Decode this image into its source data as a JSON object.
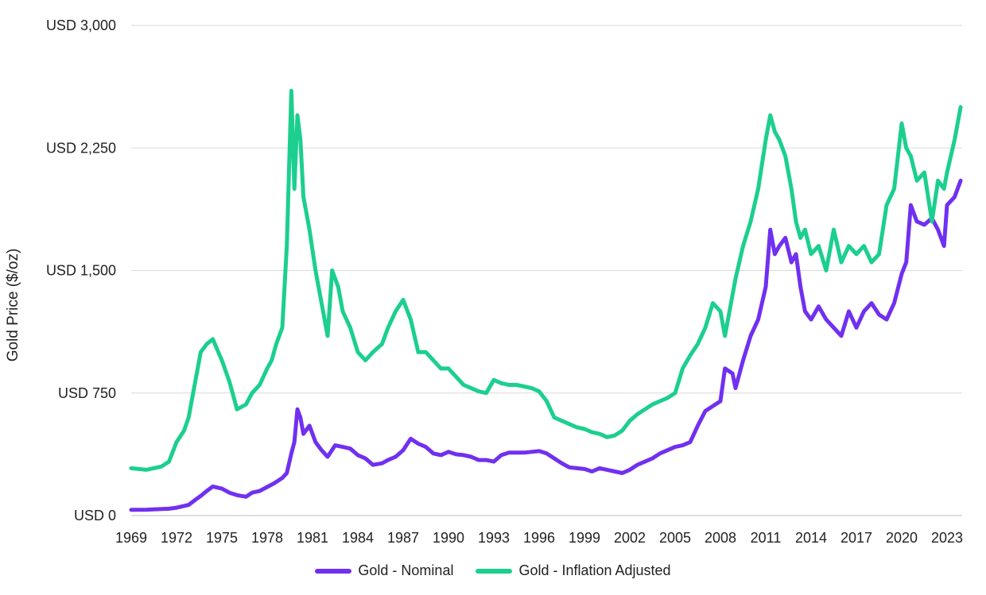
{
  "chart_data": {
    "type": "line",
    "title": "",
    "xlabel": "",
    "ylabel": "Gold Price ($/oz)",
    "ylim": [
      0,
      3000
    ],
    "xlim": [
      1969,
      2024
    ],
    "y_ticks": [
      {
        "value": 0,
        "label": "USD 0"
      },
      {
        "value": 750,
        "label": "USD 750"
      },
      {
        "value": 1500,
        "label": "USD 1,500"
      },
      {
        "value": 2250,
        "label": "USD 2,250"
      },
      {
        "value": 3000,
        "label": "USD 3,000"
      }
    ],
    "x_ticks": [
      1969,
      1972,
      1975,
      1978,
      1981,
      1984,
      1987,
      1990,
      1993,
      1996,
      1999,
      2002,
      2005,
      2008,
      2011,
      2014,
      2017,
      2020,
      2023
    ],
    "grid": "horizontal",
    "legend_position": "bottom",
    "series": [
      {
        "name": "Gold - Nominal",
        "color": "#7030f0",
        "x": [
          1969.0,
          1970.0,
          1971.0,
          1971.5,
          1972.0,
          1972.8,
          1973.3,
          1973.6,
          1974.0,
          1974.4,
          1975.0,
          1975.5,
          1976.0,
          1976.6,
          1977.0,
          1977.5,
          1978.0,
          1978.5,
          1979.0,
          1979.3,
          1979.6,
          1979.8,
          1980.0,
          1980.2,
          1980.4,
          1980.8,
          1981.2,
          1981.6,
          1982.0,
          1982.5,
          1983.0,
          1983.5,
          1984.0,
          1984.5,
          1985.0,
          1985.6,
          1986.0,
          1986.5,
          1987.0,
          1987.5,
          1988.0,
          1988.5,
          1989.0,
          1989.5,
          1990.0,
          1990.5,
          1991.0,
          1991.5,
          1992.0,
          1992.5,
          1993.0,
          1993.5,
          1994.0,
          1994.5,
          1995.0,
          1995.5,
          1996.0,
          1996.5,
          1997.0,
          1997.5,
          1998.0,
          1998.5,
          1999.0,
          1999.5,
          2000.0,
          2000.5,
          2001.0,
          2001.5,
          2002.0,
          2002.5,
          2003.0,
          2003.5,
          2004.0,
          2004.5,
          2005.0,
          2005.5,
          2006.0,
          2006.5,
          2007.0,
          2007.5,
          2008.0,
          2008.3,
          2008.8,
          2009.0,
          2009.5,
          2010.0,
          2010.5,
          2011.0,
          2011.3,
          2011.6,
          2011.9,
          2012.3,
          2012.7,
          2013.0,
          2013.3,
          2013.6,
          2014.0,
          2014.5,
          2015.0,
          2015.5,
          2016.0,
          2016.5,
          2017.0,
          2017.5,
          2018.0,
          2018.5,
          2019.0,
          2019.5,
          2020.0,
          2020.3,
          2020.6,
          2021.0,
          2021.5,
          2022.0,
          2022.4,
          2022.8,
          2023.0,
          2023.5,
          2023.9
        ],
        "values": [
          35,
          36,
          40,
          42,
          48,
          65,
          100,
          120,
          150,
          178,
          165,
          140,
          125,
          115,
          140,
          150,
          175,
          200,
          230,
          260,
          380,
          450,
          650,
          600,
          500,
          550,
          450,
          400,
          360,
          430,
          420,
          410,
          370,
          350,
          310,
          320,
          340,
          360,
          400,
          470,
          440,
          420,
          380,
          370,
          390,
          375,
          370,
          360,
          340,
          340,
          330,
          370,
          385,
          385,
          385,
          390,
          395,
          380,
          350,
          320,
          295,
          290,
          285,
          270,
          290,
          280,
          270,
          260,
          280,
          310,
          330,
          350,
          380,
          400,
          420,
          430,
          450,
          550,
          640,
          670,
          700,
          900,
          870,
          780,
          950,
          1100,
          1200,
          1400,
          1750,
          1600,
          1650,
          1700,
          1550,
          1600,
          1400,
          1250,
          1200,
          1280,
          1200,
          1150,
          1100,
          1250,
          1150,
          1250,
          1300,
          1230,
          1200,
          1300,
          1480,
          1550,
          1900,
          1800,
          1780,
          1820,
          1750,
          1650,
          1900,
          1950,
          2050
        ]
      },
      {
        "name": "Gold - Inflation Adjusted",
        "color": "#1ccf8f",
        "x": [
          1969.0,
          1970.0,
          1971.0,
          1971.5,
          1972.0,
          1972.5,
          1972.8,
          1973.3,
          1973.6,
          1974.0,
          1974.4,
          1975.0,
          1975.5,
          1975.8,
          1976.0,
          1976.6,
          1977.0,
          1977.5,
          1978.0,
          1978.3,
          1978.6,
          1979.0,
          1979.3,
          1979.6,
          1979.8,
          1980.0,
          1980.2,
          1980.4,
          1980.8,
          1981.2,
          1981.6,
          1982.0,
          1982.3,
          1982.7,
          1983.0,
          1983.5,
          1984.0,
          1984.5,
          1985.0,
          1985.6,
          1986.0,
          1986.5,
          1987.0,
          1987.5,
          1988.0,
          1988.5,
          1989.0,
          1989.5,
          1990.0,
          1990.5,
          1991.0,
          1991.5,
          1992.0,
          1992.5,
          1993.0,
          1993.5,
          1994.0,
          1994.5,
          1995.0,
          1995.5,
          1996.0,
          1996.5,
          1997.0,
          1997.5,
          1998.0,
          1998.5,
          1999.0,
          1999.5,
          2000.0,
          2000.5,
          2001.0,
          2001.5,
          2002.0,
          2002.5,
          2003.0,
          2003.5,
          2004.0,
          2004.5,
          2005.0,
          2005.5,
          2006.0,
          2006.5,
          2007.0,
          2007.5,
          2008.0,
          2008.3,
          2008.8,
          2009.0,
          2009.5,
          2010.0,
          2010.5,
          2011.0,
          2011.3,
          2011.6,
          2011.9,
          2012.3,
          2012.7,
          2013.0,
          2013.3,
          2013.6,
          2014.0,
          2014.5,
          2015.0,
          2015.5,
          2016.0,
          2016.5,
          2017.0,
          2017.5,
          2018.0,
          2018.5,
          2019.0,
          2019.5,
          2020.0,
          2020.3,
          2020.6,
          2021.0,
          2021.5,
          2022.0,
          2022.4,
          2022.8,
          2023.0,
          2023.5,
          2023.9
        ],
        "values": [
          290,
          280,
          300,
          330,
          450,
          520,
          600,
          850,
          1000,
          1050,
          1080,
          950,
          820,
          720,
          650,
          680,
          750,
          800,
          900,
          950,
          1050,
          1150,
          1650,
          2600,
          2000,
          2450,
          2300,
          1950,
          1750,
          1500,
          1300,
          1100,
          1500,
          1400,
          1250,
          1150,
          1000,
          950,
          1000,
          1050,
          1150,
          1250,
          1320,
          1200,
          1000,
          1000,
          950,
          900,
          900,
          850,
          800,
          780,
          760,
          750,
          830,
          810,
          800,
          800,
          790,
          780,
          760,
          700,
          600,
          580,
          560,
          540,
          530,
          510,
          500,
          480,
          490,
          520,
          580,
          620,
          650,
          680,
          700,
          720,
          750,
          900,
          980,
          1050,
          1150,
          1300,
          1250,
          1100,
          1350,
          1450,
          1650,
          1800,
          2000,
          2300,
          2450,
          2350,
          2300,
          2200,
          2000,
          1800,
          1700,
          1750,
          1600,
          1650,
          1500,
          1750,
          1550,
          1650,
          1600,
          1650,
          1550,
          1600,
          1900,
          2000,
          2400,
          2250,
          2200,
          2050,
          2100,
          1800,
          2050,
          2000,
          2100,
          2300,
          2500
        ]
      }
    ]
  }
}
